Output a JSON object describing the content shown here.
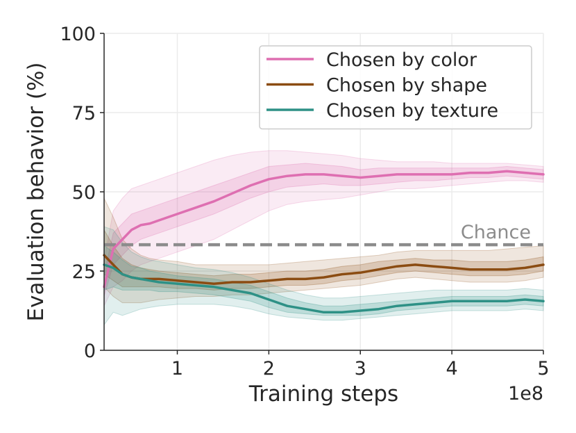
{
  "chart_data": {
    "type": "line",
    "xlabel": "Training steps",
    "ylabel": "Evaluation behavior (%)",
    "x_multiplier_label": "1e8",
    "xlim": [
      0.2,
      5.0
    ],
    "ylim": [
      0,
      100
    ],
    "xticks": [
      1,
      2,
      3,
      4,
      5
    ],
    "yticks": [
      0,
      25,
      50,
      75,
      100
    ],
    "grid": true,
    "legend_position": "top-right",
    "reference_line": {
      "label": "Chance",
      "value": 33.3,
      "color": "#8c8c8c",
      "style": "dashed"
    },
    "series": [
      {
        "name": "Chosen by color",
        "color": "#de6fb1",
        "x": [
          0.2,
          0.3,
          0.4,
          0.5,
          0.6,
          0.7,
          0.8,
          1.0,
          1.2,
          1.4,
          1.6,
          1.8,
          2.0,
          2.2,
          2.4,
          2.6,
          2.8,
          3.0,
          3.2,
          3.4,
          3.6,
          3.8,
          4.0,
          4.2,
          4.4,
          4.6,
          4.8,
          5.0
        ],
        "values": [
          20,
          32,
          35,
          38,
          39.5,
          40,
          41,
          43,
          45,
          47,
          49.5,
          52,
          54,
          55,
          55.5,
          55.5,
          55,
          54.5,
          55,
          55.5,
          55.5,
          55.5,
          55.5,
          56,
          56,
          56.5,
          56,
          55.5
        ],
        "band_outer": [
          [
            14,
            28
          ],
          [
            20,
            44
          ],
          [
            22,
            48
          ],
          [
            25,
            51
          ],
          [
            27,
            52
          ],
          [
            28,
            53
          ],
          [
            29,
            54
          ],
          [
            31,
            56
          ],
          [
            33,
            58
          ],
          [
            35,
            60
          ],
          [
            38,
            61.5
          ],
          [
            41,
            62.5
          ],
          [
            44,
            63
          ],
          [
            46,
            63
          ],
          [
            47,
            62.5
          ],
          [
            47.5,
            62
          ],
          [
            48,
            61.5
          ],
          [
            49,
            60.5
          ],
          [
            50,
            60
          ],
          [
            51,
            59.5
          ],
          [
            51,
            59.5
          ],
          [
            51.5,
            59.5
          ],
          [
            52,
            59
          ],
          [
            52.5,
            59
          ],
          [
            53,
            59
          ],
          [
            53.5,
            59
          ],
          [
            53.5,
            58.5
          ],
          [
            53,
            58
          ]
        ],
        "band_inner": [
          [
            17,
            24
          ],
          [
            27,
            37
          ],
          [
            30,
            40
          ],
          [
            33,
            43
          ],
          [
            35,
            44
          ],
          [
            36,
            45
          ],
          [
            37,
            46
          ],
          [
            39,
            48
          ],
          [
            41,
            50
          ],
          [
            43,
            52
          ],
          [
            45.5,
            54
          ],
          [
            48,
            56
          ],
          [
            50,
            58
          ],
          [
            51.5,
            58.5
          ],
          [
            52,
            59
          ],
          [
            52.5,
            58.5
          ],
          [
            52,
            58
          ],
          [
            52,
            57
          ],
          [
            52.5,
            57.5
          ],
          [
            53,
            57.5
          ],
          [
            53.5,
            57.5
          ],
          [
            53.5,
            57.5
          ],
          [
            54,
            57.5
          ],
          [
            54.5,
            57.5
          ],
          [
            54.5,
            57.5
          ],
          [
            55,
            58
          ],
          [
            54.5,
            57.5
          ],
          [
            54,
            57
          ]
        ]
      },
      {
        "name": "Chosen by shape",
        "color": "#8b4c12",
        "x": [
          0.2,
          0.3,
          0.4,
          0.5,
          0.6,
          0.7,
          0.8,
          1.0,
          1.2,
          1.4,
          1.6,
          1.8,
          2.0,
          2.2,
          2.4,
          2.6,
          2.8,
          3.0,
          3.2,
          3.4,
          3.6,
          3.8,
          4.0,
          4.2,
          4.4,
          4.6,
          4.8,
          5.0
        ],
        "values": [
          30,
          27,
          24,
          23,
          22.5,
          22.5,
          22.5,
          22,
          21.5,
          21,
          21.5,
          21.5,
          22,
          22.5,
          22.5,
          23,
          24,
          24.5,
          25.5,
          26.5,
          27,
          26.5,
          26,
          25.5,
          25.5,
          25.5,
          26,
          27
        ],
        "band_outer": [
          [
            20,
            48
          ],
          [
            17,
            42
          ],
          [
            15,
            35
          ],
          [
            15,
            32
          ],
          [
            15,
            30
          ],
          [
            15.5,
            29
          ],
          [
            16,
            28.5
          ],
          [
            16.5,
            28
          ],
          [
            17,
            27
          ],
          [
            17,
            27
          ],
          [
            17.5,
            27
          ],
          [
            17.5,
            27
          ],
          [
            18,
            27
          ],
          [
            18.5,
            27.5
          ],
          [
            19,
            28
          ],
          [
            19.5,
            28.5
          ],
          [
            20,
            29
          ],
          [
            20.5,
            29.5
          ],
          [
            21.5,
            30
          ],
          [
            22.5,
            31
          ],
          [
            23,
            31.5
          ],
          [
            22.5,
            31.5
          ],
          [
            22,
            31.5
          ],
          [
            21.5,
            31.5
          ],
          [
            21.5,
            31.5
          ],
          [
            21.5,
            32
          ],
          [
            22,
            32.5
          ],
          [
            23,
            33
          ]
        ],
        "band_inner": [
          [
            24,
            38
          ],
          [
            22,
            33
          ],
          [
            20,
            29
          ],
          [
            20,
            27
          ],
          [
            20,
            26
          ],
          [
            20,
            25.5
          ],
          [
            20,
            25
          ],
          [
            19.5,
            24.5
          ],
          [
            19.5,
            24
          ],
          [
            19,
            23.5
          ],
          [
            19.5,
            24
          ],
          [
            19.5,
            24
          ],
          [
            20,
            24.5
          ],
          [
            20.5,
            25
          ],
          [
            20.5,
            25
          ],
          [
            21,
            25.5
          ],
          [
            22,
            26.5
          ],
          [
            22.5,
            27
          ],
          [
            23.5,
            28
          ],
          [
            24.5,
            28.5
          ],
          [
            25,
            29
          ],
          [
            24.5,
            28.5
          ],
          [
            24,
            28.5
          ],
          [
            23.5,
            28
          ],
          [
            23.5,
            28
          ],
          [
            23.5,
            28
          ],
          [
            24,
            28.5
          ],
          [
            25,
            29.5
          ]
        ]
      },
      {
        "name": "Chosen by texture",
        "color": "#2e9186",
        "x": [
          0.2,
          0.3,
          0.4,
          0.5,
          0.6,
          0.7,
          0.8,
          1.0,
          1.2,
          1.4,
          1.6,
          1.8,
          2.0,
          2.2,
          2.4,
          2.6,
          2.8,
          3.0,
          3.2,
          3.4,
          3.6,
          3.8,
          4.0,
          4.2,
          4.4,
          4.6,
          4.8,
          5.0
        ],
        "values": [
          27,
          26,
          24,
          23,
          22.5,
          22,
          21.5,
          21,
          20.5,
          20,
          19,
          18,
          16,
          14,
          13,
          12,
          12,
          12.5,
          13,
          14,
          14.5,
          15,
          15.5,
          15.5,
          15.5,
          15.5,
          16,
          15.5
        ],
        "band_outer": [
          [
            8,
            39
          ],
          [
            12,
            38
          ],
          [
            11,
            34
          ],
          [
            12,
            31
          ],
          [
            13,
            29.5
          ],
          [
            13.5,
            28.5
          ],
          [
            14,
            28
          ],
          [
            14.5,
            27
          ],
          [
            14.5,
            26
          ],
          [
            14.5,
            25.5
          ],
          [
            14,
            24.5
          ],
          [
            13,
            23
          ],
          [
            11.5,
            21
          ],
          [
            10.5,
            19
          ],
          [
            10,
            17.5
          ],
          [
            9.5,
            16.5
          ],
          [
            9.5,
            16.5
          ],
          [
            10,
            17
          ],
          [
            10.5,
            17.5
          ],
          [
            11,
            18
          ],
          [
            11.5,
            18.5
          ],
          [
            12,
            19
          ],
          [
            12.5,
            19
          ],
          [
            12.5,
            19
          ],
          [
            12.5,
            19
          ],
          [
            12.5,
            19
          ],
          [
            13,
            19.5
          ],
          [
            12.5,
            19
          ]
        ],
        "band_inner": [
          [
            19,
            33
          ],
          [
            20,
            31
          ],
          [
            19,
            28.5
          ],
          [
            19,
            26.5
          ],
          [
            19,
            26
          ],
          [
            19,
            25
          ],
          [
            18.5,
            24.5
          ],
          [
            18.5,
            23.5
          ],
          [
            18,
            23
          ],
          [
            17.5,
            22.5
          ],
          [
            16.5,
            21.5
          ],
          [
            15.5,
            20.5
          ],
          [
            13.5,
            18.5
          ],
          [
            12,
            16.5
          ],
          [
            11.5,
            15
          ],
          [
            11,
            14
          ],
          [
            11,
            14
          ],
          [
            11,
            14.5
          ],
          [
            11.5,
            15
          ],
          [
            12.5,
            15.5
          ],
          [
            13,
            16
          ],
          [
            13.5,
            16.5
          ],
          [
            14,
            17
          ],
          [
            14,
            17
          ],
          [
            14,
            17
          ],
          [
            14,
            17
          ],
          [
            14.5,
            17.5
          ],
          [
            14,
            17
          ]
        ]
      }
    ]
  }
}
